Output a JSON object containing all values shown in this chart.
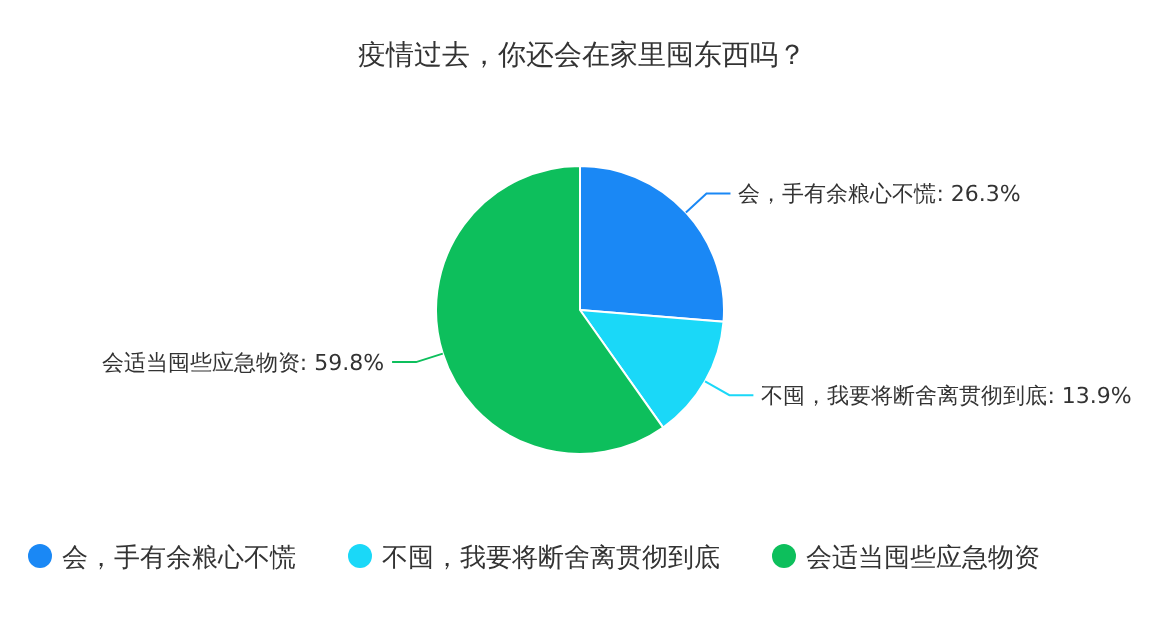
{
  "chart_data": {
    "type": "pie",
    "title": "疫情过去，你还会在家里囤东西吗？",
    "categories": [
      "会，手有余粮心不慌",
      "不囤，我要将断舍离贯彻到底",
      "会适当囤些应急物资"
    ],
    "values": [
      26.3,
      13.9,
      59.8
    ],
    "colors": [
      "#1a88f5",
      "#1ad8f8",
      "#0dbf5c"
    ],
    "value_labels": [
      "会，手有余粮心不慌: 26.3%",
      "不囤，我要将断舍离贯彻到底: 13.9%",
      "会适当囤些应急物资: 59.8%"
    ],
    "legend": "bottom"
  }
}
